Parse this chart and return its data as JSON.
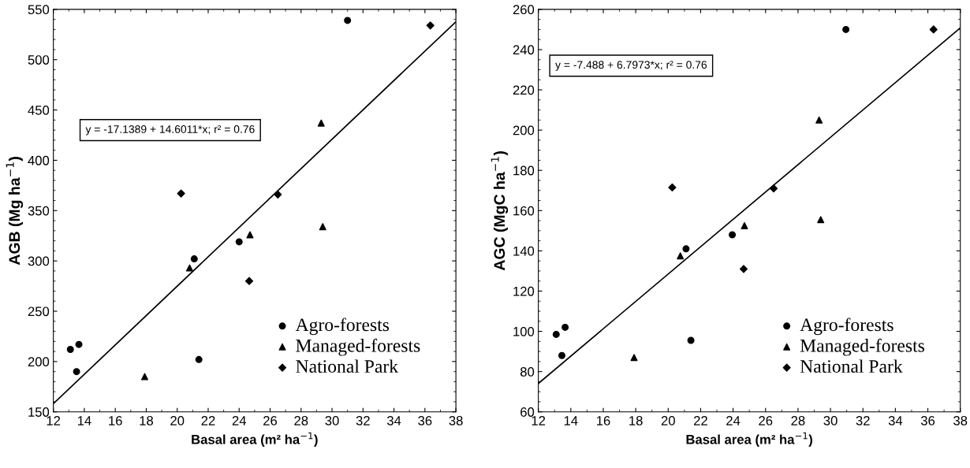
{
  "chart_data": [
    {
      "type": "scatter",
      "xlabel": "Basal area (m² ha$^{−1}$)",
      "ylabel": "AGB (Mg ha$^{−1}$)",
      "xlim": [
        12,
        38
      ],
      "xticks": [
        12,
        14,
        16,
        18,
        20,
        22,
        24,
        26,
        28,
        30,
        32,
        34,
        36,
        38
      ],
      "ylim": [
        150,
        550
      ],
      "yticks": [
        150,
        200,
        250,
        300,
        350,
        400,
        450,
        500,
        550
      ],
      "grid": false,
      "legend": "bottom right",
      "annotations": [
        "y = -17.1389 + 14.6011*x; r² = 0.76"
      ],
      "series": [
        {
          "name": "Agro-forests",
          "color": "#000000",
          "marker": "circle",
          "x": [
            13.1,
            13.5,
            13.65,
            21.1,
            21.4,
            24.0,
            31.0
          ],
          "values": [
            212,
            190,
            217,
            302,
            202,
            319,
            539
          ]
        },
        {
          "name": "Managed-forests",
          "color": "#000000",
          "marker": "triangle",
          "x": [
            17.9,
            20.8,
            24.7,
            29.3,
            29.4
          ],
          "values": [
            185,
            293,
            326,
            437,
            334
          ]
        },
        {
          "name": "National Park",
          "color": "#000000",
          "marker": "diamond",
          "x": [
            20.25,
            24.65,
            26.5,
            36.35
          ],
          "values": [
            367,
            280,
            366,
            534
          ]
        },
        {
          "type": "line",
          "color": "#000000",
          "marker": "none",
          "x": [
            12,
            38
          ],
          "values": [
            158.1,
            537.7
          ]
        }
      ]
    },
    {
      "type": "scatter",
      "xlabel": "Basal area (m² ha$^{−1}$)",
      "ylabel": "AGC (MgC ha$^{−1}$)",
      "xlim": [
        12,
        38
      ],
      "xticks": [
        12,
        14,
        16,
        18,
        20,
        22,
        24,
        26,
        28,
        30,
        32,
        34,
        36,
        38
      ],
      "ylim": [
        60,
        260
      ],
      "yticks": [
        60,
        80,
        100,
        120,
        140,
        160,
        180,
        200,
        220,
        240,
        260
      ],
      "grid": false,
      "legend": "bottom right",
      "annotations": [
        "y = -7.488 + 6.7973*x; r² = 0.76"
      ],
      "series": [
        {
          "name": "Agro-forests",
          "color": "#000000",
          "marker": "circle",
          "x": [
            13.1,
            13.45,
            13.65,
            21.1,
            21.4,
            23.95,
            30.95
          ],
          "values": [
            98.5,
            88,
            102,
            141,
            95.5,
            148,
            250
          ]
        },
        {
          "name": "Managed-forests",
          "color": "#000000",
          "marker": "triangle",
          "x": [
            17.9,
            20.75,
            24.7,
            29.3,
            29.4
          ],
          "values": [
            87,
            137.5,
            152.5,
            205,
            155.5
          ]
        },
        {
          "name": "National Park",
          "color": "#000000",
          "marker": "diamond",
          "x": [
            20.25,
            24.65,
            26.5,
            36.35
          ],
          "values": [
            171.5,
            131,
            171,
            250
          ]
        },
        {
          "type": "line",
          "color": "#000000",
          "marker": "none",
          "x": [
            12,
            38
          ],
          "values": [
            74.1,
            250.8
          ]
        }
      ]
    }
  ]
}
